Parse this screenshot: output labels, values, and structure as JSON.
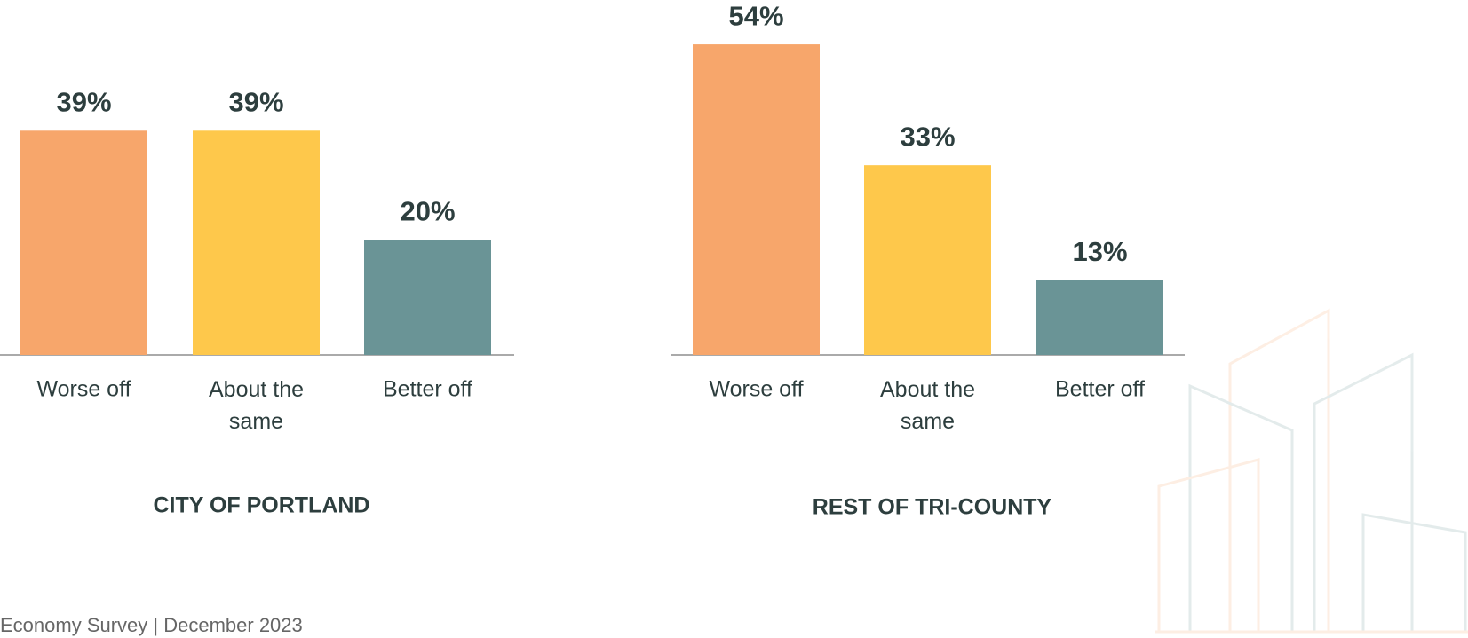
{
  "chart_data": [
    {
      "type": "bar",
      "title": "CITY OF PORTLAND",
      "categories": [
        "Worse off",
        "About the same",
        "Better off"
      ],
      "values": [
        39,
        39,
        20
      ],
      "value_labels": [
        "39%",
        "39%",
        "20%"
      ],
      "colors": [
        "#f7a66b",
        "#fec84b",
        "#6a9496"
      ]
    },
    {
      "type": "bar",
      "title": "REST OF TRI-COUNTY",
      "categories": [
        "Worse off",
        "About the same",
        "Better off"
      ],
      "values": [
        54,
        33,
        13
      ],
      "value_labels": [
        "54%",
        "33%",
        "13%"
      ],
      "colors": [
        "#f7a66b",
        "#fec84b",
        "#6a9496"
      ]
    }
  ],
  "footer": "Economy Survey | December 2023"
}
